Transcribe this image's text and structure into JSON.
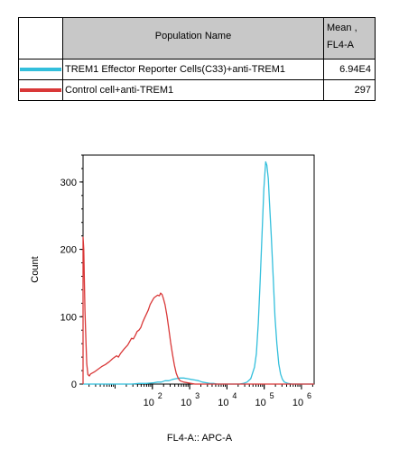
{
  "legend": {
    "header_name": "Population Name",
    "header_mean_line1": "Mean ,",
    "header_mean_line2": "FL4-A",
    "rows": [
      {
        "name": "TREM1 Effector Reporter Cells(C33)+anti-TREM1",
        "mean": "6.94E4",
        "color": "#33bfdc"
      },
      {
        "name": "Control cell+anti-TREM1",
        "mean": "297",
        "color": "#d93838"
      }
    ]
  },
  "chart_data": {
    "type": "line",
    "xlabel": "FL4-A:: APC-A",
    "ylabel": "Count",
    "xscale": "log",
    "xlim": [
      0,
      6.2
    ],
    "ylim": [
      0,
      340
    ],
    "y_ticks": [
      0,
      100,
      200,
      300
    ],
    "y_tick_labels": [
      "0",
      "100",
      "200",
      "300"
    ],
    "x_ticks": [
      {
        "value": 1.86,
        "base": "10",
        "exp": "2"
      },
      {
        "value": 2.86,
        "base": "10",
        "exp": "3"
      },
      {
        "value": 3.86,
        "base": "10",
        "exp": "4"
      },
      {
        "value": 4.86,
        "base": "10",
        "exp": "5"
      },
      {
        "value": 5.86,
        "base": "10",
        "exp": "6"
      }
    ],
    "grid": false,
    "series": [
      {
        "color": "#33bfdc",
        "points": [
          [
            0.0,
            0
          ],
          [
            1.0,
            0
          ],
          [
            1.3,
            0
          ],
          [
            1.5,
            1
          ],
          [
            1.7,
            1
          ],
          [
            1.9,
            2
          ],
          [
            2.0,
            3
          ],
          [
            2.1,
            3
          ],
          [
            2.2,
            5
          ],
          [
            2.3,
            5
          ],
          [
            2.4,
            7
          ],
          [
            2.5,
            8
          ],
          [
            2.6,
            9
          ],
          [
            2.7,
            9
          ],
          [
            2.8,
            8
          ],
          [
            2.9,
            7
          ],
          [
            3.0,
            6
          ],
          [
            3.1,
            5
          ],
          [
            3.2,
            3
          ],
          [
            3.3,
            2
          ],
          [
            3.4,
            1
          ],
          [
            3.5,
            1
          ],
          [
            3.6,
            0
          ],
          [
            4.0,
            0
          ],
          [
            4.2,
            0
          ],
          [
            4.3,
            1
          ],
          [
            4.4,
            3
          ],
          [
            4.5,
            8
          ],
          [
            4.6,
            25
          ],
          [
            4.65,
            45
          ],
          [
            4.7,
            90
          ],
          [
            4.75,
            150
          ],
          [
            4.8,
            220
          ],
          [
            4.85,
            290
          ],
          [
            4.9,
            330
          ],
          [
            4.93,
            325
          ],
          [
            4.97,
            305
          ],
          [
            5.0,
            270
          ],
          [
            5.05,
            220
          ],
          [
            5.1,
            160
          ],
          [
            5.15,
            100
          ],
          [
            5.2,
            60
          ],
          [
            5.25,
            30
          ],
          [
            5.3,
            15
          ],
          [
            5.35,
            7
          ],
          [
            5.4,
            3
          ],
          [
            5.5,
            1
          ],
          [
            5.6,
            0
          ],
          [
            6.2,
            0
          ]
        ]
      },
      {
        "color": "#d93838",
        "points": [
          [
            0.0,
            0
          ],
          [
            0.0,
            218
          ],
          [
            0.02,
            200
          ],
          [
            0.05,
            110
          ],
          [
            0.08,
            60
          ],
          [
            0.1,
            30
          ],
          [
            0.13,
            14
          ],
          [
            0.17,
            12
          ],
          [
            0.2,
            15
          ],
          [
            0.3,
            18
          ],
          [
            0.4,
            22
          ],
          [
            0.5,
            26
          ],
          [
            0.6,
            29
          ],
          [
            0.7,
            33
          ],
          [
            0.8,
            38
          ],
          [
            0.9,
            42
          ],
          [
            0.95,
            40
          ],
          [
            1.0,
            45
          ],
          [
            1.1,
            52
          ],
          [
            1.2,
            58
          ],
          [
            1.3,
            68
          ],
          [
            1.35,
            67
          ],
          [
            1.4,
            72
          ],
          [
            1.45,
            78
          ],
          [
            1.5,
            80
          ],
          [
            1.55,
            84
          ],
          [
            1.6,
            92
          ],
          [
            1.65,
            98
          ],
          [
            1.7,
            104
          ],
          [
            1.75,
            110
          ],
          [
            1.8,
            118
          ],
          [
            1.85,
            123
          ],
          [
            1.9,
            128
          ],
          [
            1.95,
            130
          ],
          [
            2.0,
            132
          ],
          [
            2.05,
            131
          ],
          [
            2.08,
            135
          ],
          [
            2.12,
            133
          ],
          [
            2.15,
            128
          ],
          [
            2.2,
            118
          ],
          [
            2.25,
            102
          ],
          [
            2.3,
            82
          ],
          [
            2.35,
            62
          ],
          [
            2.4,
            44
          ],
          [
            2.45,
            28
          ],
          [
            2.5,
            16
          ],
          [
            2.55,
            9
          ],
          [
            2.6,
            5
          ],
          [
            2.7,
            3
          ],
          [
            2.8,
            2
          ],
          [
            2.9,
            1
          ],
          [
            3.0,
            0
          ],
          [
            6.2,
            0
          ]
        ]
      }
    ]
  }
}
